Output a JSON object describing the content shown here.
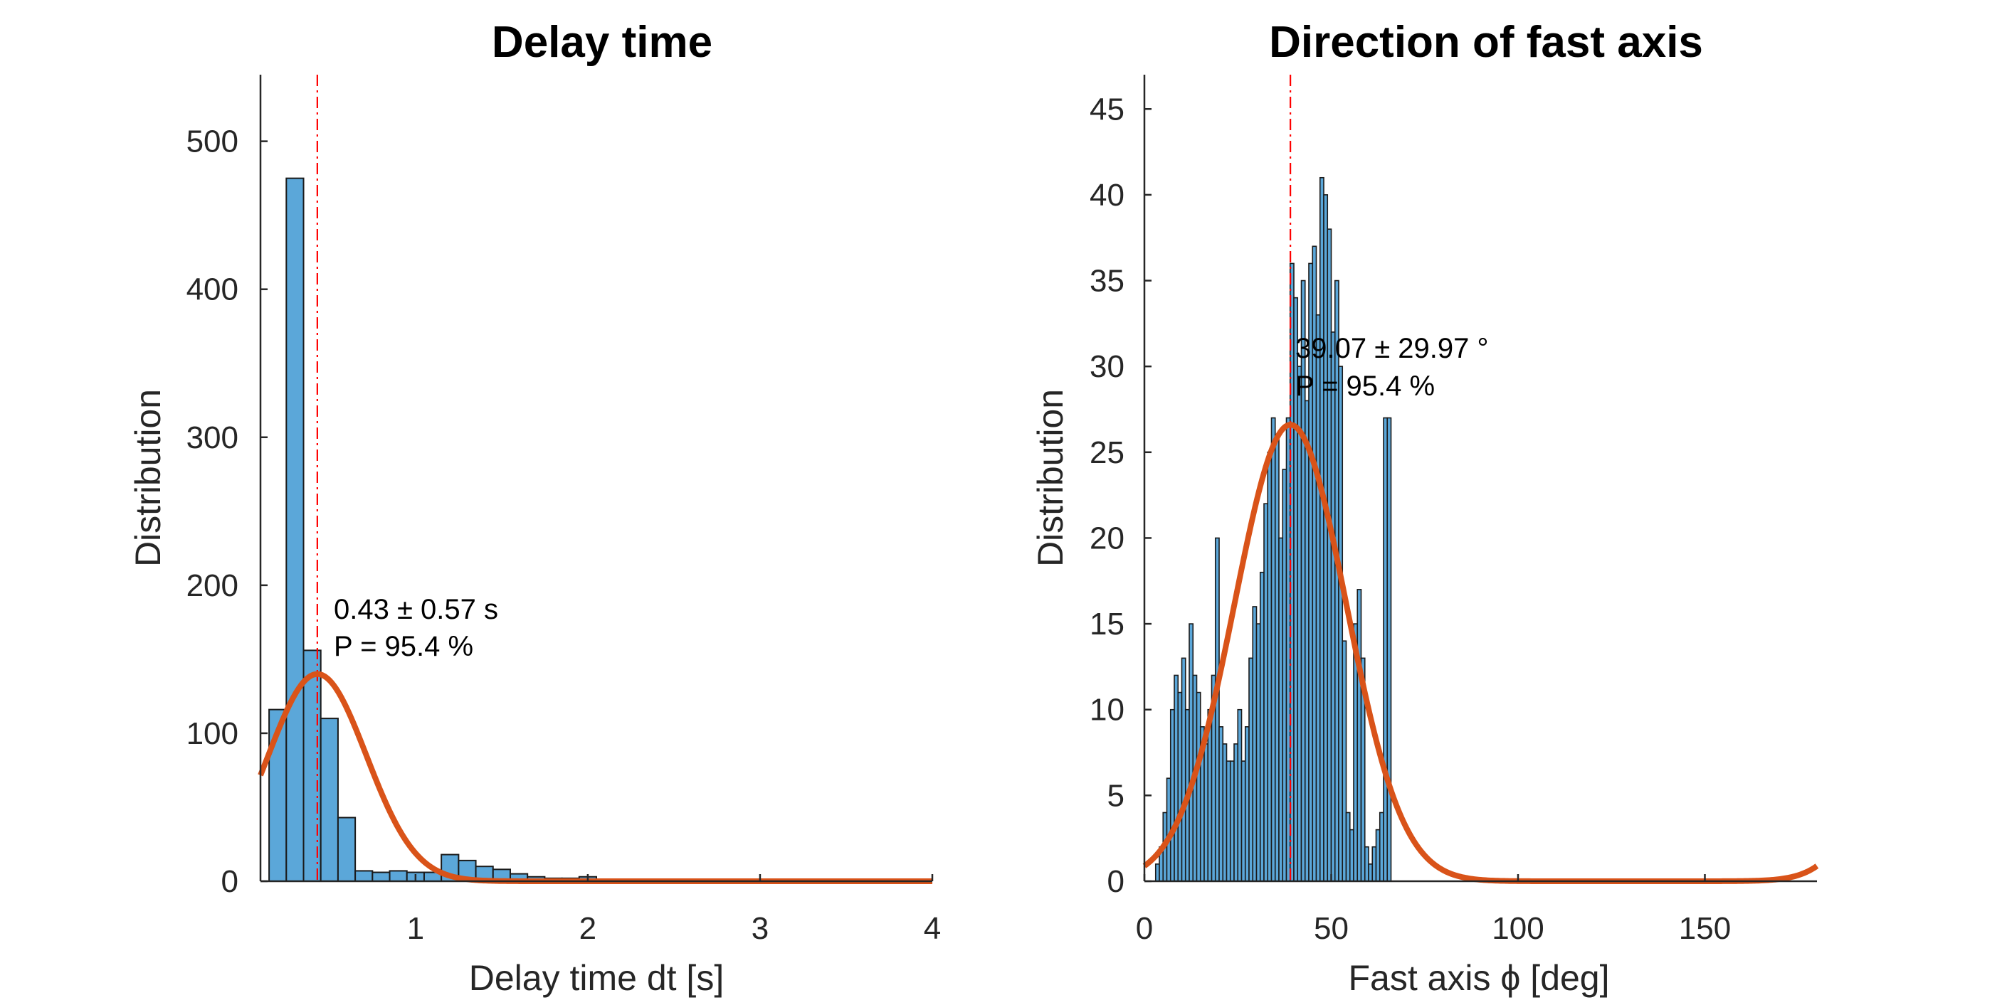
{
  "chart_data": [
    {
      "type": "bar",
      "title": "Delay time",
      "xlabel": "Delay time dt [s]",
      "ylabel": "Distribution",
      "xlim": [
        0.1,
        4
      ],
      "ylim": [
        0,
        545
      ],
      "xticks": [
        "1",
        "2",
        "3",
        "4"
      ],
      "xtick_values": [
        1,
        2,
        3,
        4
      ],
      "yticks": [
        "0",
        "100",
        "200",
        "300",
        "400",
        "500"
      ],
      "ytick_values": [
        0,
        100,
        200,
        300,
        400,
        500
      ],
      "bin_width": 0.1,
      "bin_edges_start": 0.15,
      "histogram_counts": [
        116,
        475,
        156,
        110,
        43,
        7,
        6,
        7,
        6,
        6,
        18,
        14,
        10,
        8,
        5,
        3,
        2,
        2,
        3
      ],
      "fit": {
        "mean": 0.43,
        "sigma": 0.285,
        "peak": 140
      },
      "mean_line_x": 0.43,
      "annotation": [
        "0.43 ± 0.57 s",
        "P = 95.4 %"
      ],
      "colors": {
        "bars": "#5ba7d9",
        "bar_edge": "#1a1a1a",
        "fit": "#d95319",
        "mean_line": "#ff0000"
      }
    },
    {
      "type": "bar",
      "title": "Direction of fast axis",
      "xlabel": "Fast axis ϕ [deg]",
      "ylabel": "Distribution",
      "xlim": [
        0,
        180
      ],
      "ylim": [
        0,
        47
      ],
      "xticks": [
        "0",
        "50",
        "100",
        "150"
      ],
      "xtick_values": [
        0,
        50,
        100,
        150
      ],
      "yticks": [
        "0",
        "5",
        "10",
        "15",
        "20",
        "25",
        "30",
        "35",
        "40",
        "45"
      ],
      "ytick_values": [
        0,
        5,
        10,
        15,
        20,
        25,
        30,
        35,
        40,
        45
      ],
      "bin_width": 1,
      "bin_edges_start": 3,
      "histogram_counts": [
        1,
        2,
        4,
        6,
        10,
        12,
        11,
        13,
        10,
        15,
        12,
        11,
        9,
        8,
        10,
        12,
        20,
        9,
        8,
        7,
        7,
        8,
        10,
        7,
        9,
        13,
        16,
        15,
        18,
        22,
        25,
        27,
        26,
        20,
        24,
        27,
        36,
        34,
        30,
        35,
        28,
        36,
        37,
        33,
        41,
        40,
        38,
        32,
        35,
        30,
        14,
        4,
        3,
        15,
        17,
        13,
        2,
        1,
        2,
        3,
        4,
        27,
        27
      ],
      "fit": {
        "mean": 39.07,
        "sigma": 14.985,
        "peak": 26.6
      },
      "mean_line_x": 39.07,
      "annotation": [
        "39.07 ± 29.97 °",
        "P = 95.4 %"
      ],
      "colors": {
        "bars": "#5ba7d9",
        "bar_edge": "#1a1a1a",
        "fit": "#d95319",
        "mean_line": "#ff0000"
      }
    }
  ]
}
